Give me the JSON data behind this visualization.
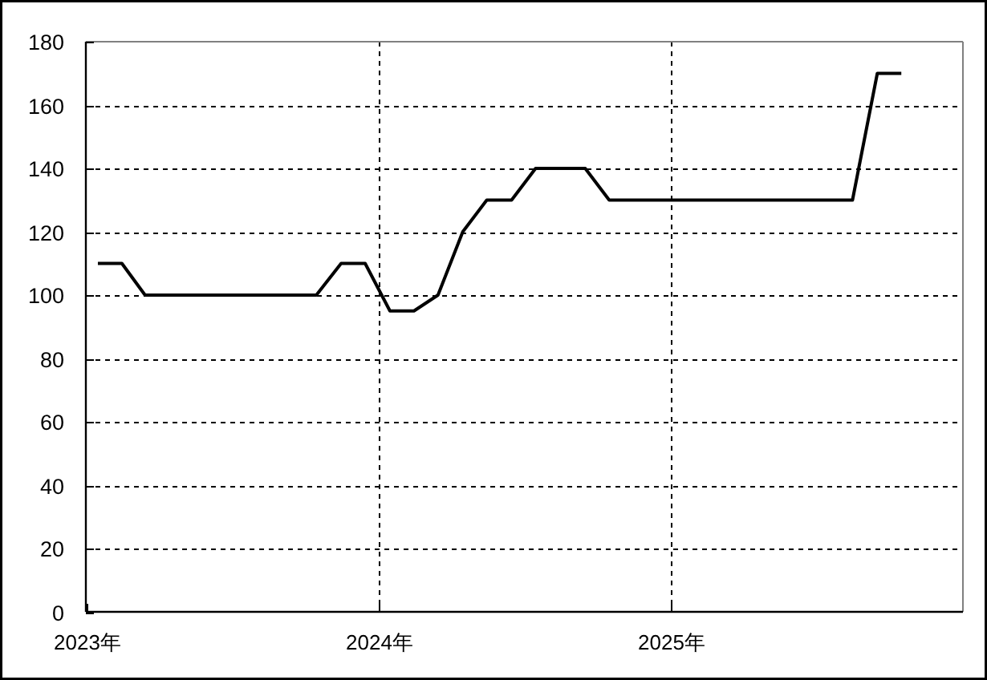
{
  "chart_data": {
    "type": "line",
    "x": [
      "2023-01-16",
      "2023-02-15",
      "2023-03-16",
      "2023-04-16",
      "2023-05-16",
      "2023-06-16",
      "2023-07-16",
      "2023-08-16",
      "2023-09-16",
      "2023-10-16",
      "2023-11-16",
      "2023-12-16",
      "2024-01-16",
      "2024-02-15",
      "2024-03-16",
      "2024-04-16",
      "2024-05-16",
      "2024-06-16",
      "2024-07-16",
      "2024-08-16",
      "2024-09-16",
      "2024-10-16",
      "2024-11-16",
      "2024-12-16",
      "2025-01-16",
      "2025-02-15",
      "2025-03-16",
      "2025-04-16",
      "2025-05-16",
      "2025-06-16",
      "2025-07-16",
      "2025-08-16",
      "2025-09-16",
      "2025-10-16"
    ],
    "values": [
      110,
      110,
      100,
      100,
      100,
      100,
      100,
      100,
      100,
      100,
      110,
      110,
      95,
      95,
      100,
      120,
      130,
      130,
      140,
      140,
      140,
      130,
      130,
      130,
      130,
      130,
      130,
      130,
      130,
      130,
      130,
      130,
      170,
      170
    ],
    "color": "#000000",
    "line_style": "solid",
    "xlim": [
      "2023-01-01",
      "2026-01-01"
    ],
    "xticks": [
      {
        "value": "2023",
        "label": "2023年"
      },
      {
        "value": "2024",
        "label": "2024年"
      },
      {
        "value": "2025",
        "label": "2025年"
      }
    ],
    "ylim": [
      0,
      180
    ],
    "yticks": [
      0,
      20,
      40,
      60,
      80,
      100,
      120,
      140,
      160,
      180
    ],
    "grid": true
  }
}
